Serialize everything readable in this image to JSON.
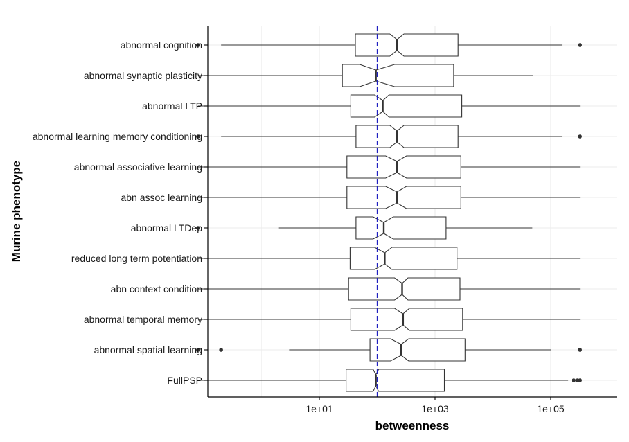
{
  "chart_data": {
    "type": "boxplot",
    "orientation": "horizontal",
    "notched": true,
    "xlabel": "betweenness",
    "ylabel": "Murine phenotype",
    "x_scale": "log10",
    "xlim": [
      0.08,
      1000000
    ],
    "x_ticks": [
      {
        "value": 10,
        "label": "1e+01"
      },
      {
        "value": 1000,
        "label": "1e+03"
      },
      {
        "value": 100000,
        "label": "1e+05"
      }
    ],
    "grid": true,
    "reference_line": {
      "value": 100,
      "style": "dashed",
      "color": "#2020c0"
    },
    "colors": {
      "box_stroke": "#333333",
      "box_fill": "#ffffff",
      "outlier": "#333333",
      "grid": "#ebebeb",
      "axis": "#000000"
    },
    "categories": [
      "abnormal cognition",
      "abnormal synaptic plasticity",
      "abnormal LTP",
      "abnormal learning memory conditioning",
      "abnormal associative learning",
      "abn assoc learning",
      "abnormal LTDep",
      "reduced long term potentiation",
      "abn context condition",
      "abnormal temporal memory",
      "abnormal spatial learning",
      "FullPSP"
    ],
    "boxes": [
      {
        "whisker_low": 0.2,
        "q1": 42,
        "notch_low": 165,
        "median": 220,
        "notch_high": 290,
        "q3": 2500,
        "whisker_high": 160000,
        "outliers": [
          0.08,
          320000
        ]
      },
      {
        "whisker_low": 0.08,
        "q1": 25,
        "notch_low": 50,
        "median": 95,
        "notch_high": 200,
        "q3": 2100,
        "whisker_high": 50000,
        "outliers": []
      },
      {
        "whisker_low": 0.08,
        "q1": 35,
        "notch_low": 90,
        "median": 125,
        "notch_high": 160,
        "q3": 2900,
        "whisker_high": 320000,
        "outliers": []
      },
      {
        "whisker_low": 0.2,
        "q1": 43,
        "notch_low": 165,
        "median": 220,
        "notch_high": 290,
        "q3": 2500,
        "whisker_high": 160000,
        "outliers": [
          0.08,
          320000
        ]
      },
      {
        "whisker_low": 0.08,
        "q1": 30,
        "notch_low": 140,
        "median": 220,
        "notch_high": 320,
        "q3": 2800,
        "whisker_high": 320000,
        "outliers": []
      },
      {
        "whisker_low": 0.08,
        "q1": 30,
        "notch_low": 140,
        "median": 220,
        "notch_high": 320,
        "q3": 2800,
        "whisker_high": 320000,
        "outliers": []
      },
      {
        "whisker_low": 2,
        "q1": 43,
        "notch_low": 85,
        "median": 130,
        "notch_high": 190,
        "q3": 1550,
        "whisker_high": 48000,
        "outliers": [
          0.08
        ]
      },
      {
        "whisker_low": 0.08,
        "q1": 34,
        "notch_low": 90,
        "median": 135,
        "notch_high": 180,
        "q3": 2400,
        "whisker_high": 320000,
        "outliers": []
      },
      {
        "whisker_low": 0.08,
        "q1": 32,
        "notch_low": 200,
        "median": 270,
        "notch_high": 340,
        "q3": 2700,
        "whisker_high": 320000,
        "outliers": []
      },
      {
        "whisker_low": 0.08,
        "q1": 35,
        "notch_low": 200,
        "median": 280,
        "notch_high": 360,
        "q3": 3000,
        "whisker_high": 320000,
        "outliers": []
      },
      {
        "whisker_low": 3,
        "q1": 75,
        "notch_low": 170,
        "median": 260,
        "notch_high": 350,
        "q3": 3300,
        "whisker_high": 100000,
        "outliers": [
          0.08,
          0.2,
          320000
        ]
      },
      {
        "whisker_low": 0.08,
        "q1": 29,
        "notch_low": 85,
        "median": 95,
        "notch_high": 106,
        "q3": 1450,
        "whisker_high": 200000,
        "outliers": [
          250000,
          290000,
          320000
        ]
      }
    ]
  }
}
